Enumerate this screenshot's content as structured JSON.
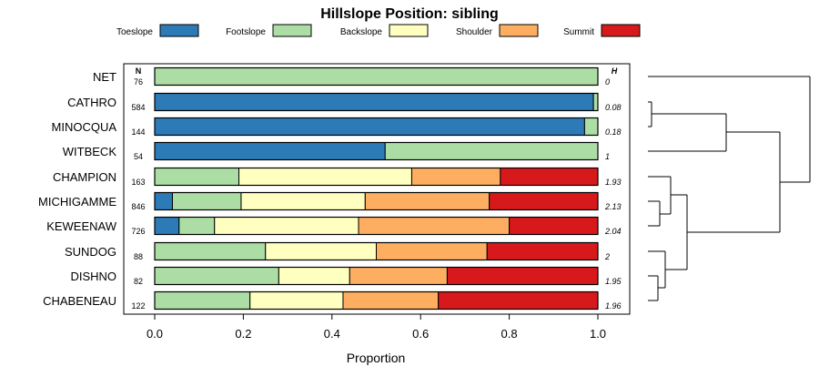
{
  "chart_data": {
    "type": "bar",
    "orientation": "horizontal",
    "stacked": true,
    "title": "Hillslope Position: sibling",
    "xlabel": "Proportion",
    "xlim": [
      0,
      1
    ],
    "xticks": [
      "0.0",
      "0.2",
      "0.4",
      "0.6",
      "0.8",
      "1.0"
    ],
    "legend_position": "top",
    "n_header": "N",
    "h_header": "H",
    "series": [
      {
        "name": "Toeslope",
        "color": "#2C7BB6"
      },
      {
        "name": "Footslope",
        "color": "#ABDDA4"
      },
      {
        "name": "Backslope",
        "color": "#FFFFBF"
      },
      {
        "name": "Shoulder",
        "color": "#FDAE61"
      },
      {
        "name": "Summit",
        "color": "#D7191C"
      }
    ],
    "rows": [
      {
        "label": "NET",
        "n": "76",
        "h": "0",
        "values": [
          0.0,
          1.0,
          0.0,
          0.0,
          0.0
        ]
      },
      {
        "label": "CATHRO",
        "n": "584",
        "h": "0.08",
        "values": [
          0.99,
          0.01,
          0.0,
          0.0,
          0.0
        ]
      },
      {
        "label": "MINOCQUA",
        "n": "144",
        "h": "0.18",
        "values": [
          0.97,
          0.03,
          0.0,
          0.0,
          0.0
        ]
      },
      {
        "label": "WITBECK",
        "n": "54",
        "h": "1",
        "values": [
          0.52,
          0.48,
          0.0,
          0.0,
          0.0
        ]
      },
      {
        "label": "CHAMPION",
        "n": "163",
        "h": "1.93",
        "values": [
          0.0,
          0.19,
          0.39,
          0.2,
          0.22
        ]
      },
      {
        "label": "MICHIGAMME",
        "n": "846",
        "h": "2.13",
        "values": [
          0.04,
          0.155,
          0.28,
          0.28,
          0.245
        ]
      },
      {
        "label": "KEWEENAW",
        "n": "726",
        "h": "2.04",
        "values": [
          0.055,
          0.08,
          0.325,
          0.34,
          0.2
        ]
      },
      {
        "label": "SUNDOG",
        "n": "88",
        "h": "2",
        "values": [
          0.0,
          0.25,
          0.25,
          0.25,
          0.25
        ]
      },
      {
        "label": "DISHNO",
        "n": "82",
        "h": "1.95",
        "values": [
          0.0,
          0.28,
          0.16,
          0.22,
          0.34
        ]
      },
      {
        "label": "CHABENEAU",
        "n": "122",
        "h": "1.96",
        "values": [
          0.0,
          0.215,
          0.21,
          0.215,
          0.36
        ]
      }
    ]
  }
}
